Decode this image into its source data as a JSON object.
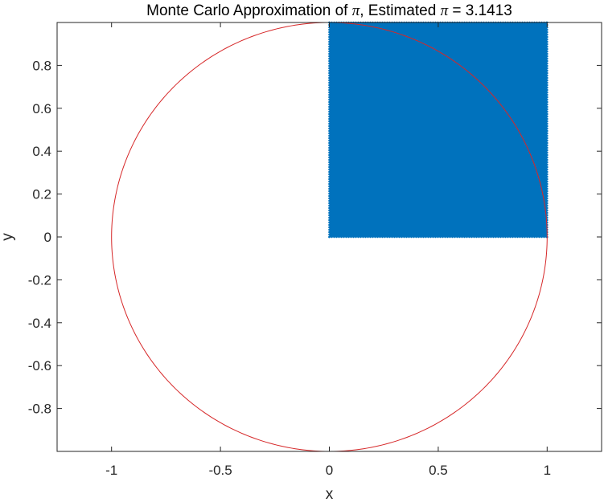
{
  "chart_data": {
    "type": "scatter",
    "title": {
      "prefix": "Monte Carlo Approximation of ",
      "symbol": "π",
      "middle": ", Estimated ",
      "suffix": " = 3.1413"
    },
    "xlabel": "x",
    "ylabel": "y",
    "xlim": [
      -1.25,
      1.25
    ],
    "ylim": [
      -1,
      1
    ],
    "xticks": [
      -1,
      -0.5,
      0,
      0.5,
      1
    ],
    "xtick_labels": [
      "-1",
      "-0.5",
      "0",
      "0.5",
      "1"
    ],
    "yticks": [
      -0.8,
      -0.6,
      -0.4,
      -0.2,
      0,
      0.2,
      0.4,
      0.6,
      0.8
    ],
    "ytick_labels": [
      "-0.8",
      "-0.6",
      "-0.4",
      "-0.2",
      "0",
      "0.2",
      "0.4",
      "0.6",
      "0.8"
    ],
    "grid": false,
    "aspect": "equal",
    "series": [
      {
        "kind": "points",
        "x_range": [
          0,
          1
        ],
        "y_range": [
          0,
          1
        ],
        "color": "#0072BD",
        "marker": "dot"
      },
      {
        "kind": "circle",
        "center": [
          0,
          0
        ],
        "radius": 1,
        "color": "#D62728"
      }
    ],
    "estimated_pi": 3.1413
  }
}
